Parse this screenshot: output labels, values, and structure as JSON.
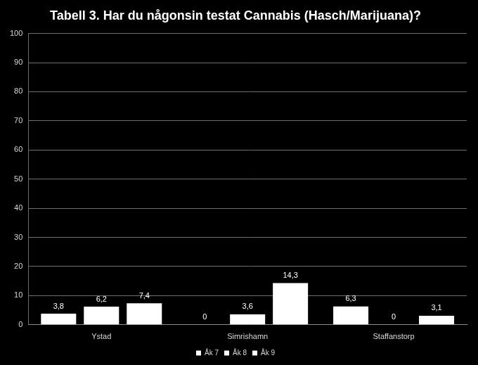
{
  "chart_data": {
    "type": "bar",
    "title": "Tabell 3. Har du någonsin testat Cannabis (Hasch/Marijuana)?",
    "categories": [
      "Ystad",
      "Simrishamn",
      "Staffanstorp"
    ],
    "series": [
      {
        "name": "Åk 7",
        "color": "#ffffff",
        "values": [
          3.8,
          0,
          6.3
        ],
        "value_labels": [
          "3,8",
          "0",
          "6,3"
        ]
      },
      {
        "name": "Åk 8",
        "color": "#ffffff",
        "values": [
          6.2,
          3.6,
          0
        ],
        "value_labels": [
          "6,2",
          "3,6",
          "0"
        ]
      },
      {
        "name": "Åk 9",
        "color": "#ffffff",
        "values": [
          7.4,
          14.3,
          3.1
        ],
        "value_labels": [
          "7,4",
          "14,3",
          "3,1"
        ]
      }
    ],
    "ylim": [
      0,
      100
    ],
    "yticks": [
      0,
      10,
      20,
      30,
      40,
      50,
      60,
      70,
      80,
      90,
      100
    ],
    "grid": true,
    "legend": "bottom",
    "data_labels": true
  }
}
